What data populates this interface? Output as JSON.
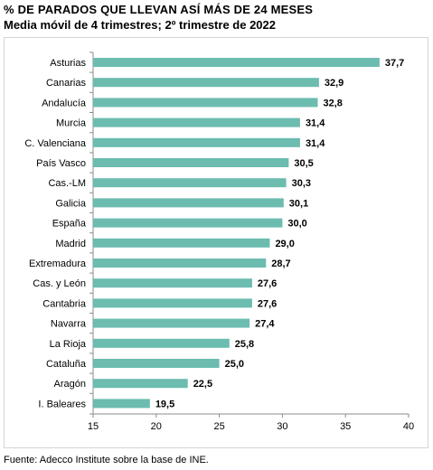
{
  "chart_data": {
    "type": "bar",
    "orientation": "horizontal",
    "title": "%  DE PARADOS QUE LLEVAN ASÍ MÁS DE 24 MESES",
    "subtitle": "Media móvil de 4 trimestres; 2º trimestre de 2022",
    "categories": [
      "Asturias",
      "Canarias",
      "Andalucía",
      "Murcia",
      "C. Valenciana",
      "País Vasco",
      "Cas.-LM",
      "Galicia",
      "España",
      "Madrid",
      "Extremadura",
      "Cas. y León",
      "Cantabria",
      "Navarra",
      "La Rioja",
      "Cataluña",
      "Aragón",
      "I. Baleares"
    ],
    "values": [
      37.7,
      32.9,
      32.8,
      31.4,
      31.4,
      30.5,
      30.3,
      30.1,
      30.0,
      29.0,
      28.7,
      27.6,
      27.6,
      27.4,
      25.8,
      25.0,
      22.5,
      19.5
    ],
    "value_labels": [
      "37,7",
      "32,9",
      "32,8",
      "31,4",
      "31,4",
      "30,5",
      "30,3",
      "30,1",
      "30,0",
      "29,0",
      "28,7",
      "27,6",
      "27,6",
      "27,4",
      "25,8",
      "25,0",
      "22,5",
      "19,5"
    ],
    "xlim": [
      15,
      40
    ],
    "x_ticks": [
      15,
      20,
      25,
      30,
      35,
      40
    ],
    "bar_color": "#6cbcb0",
    "grid": false,
    "legend": "none",
    "source": "Fuente: Adecco Institute sobre la base de INE."
  }
}
